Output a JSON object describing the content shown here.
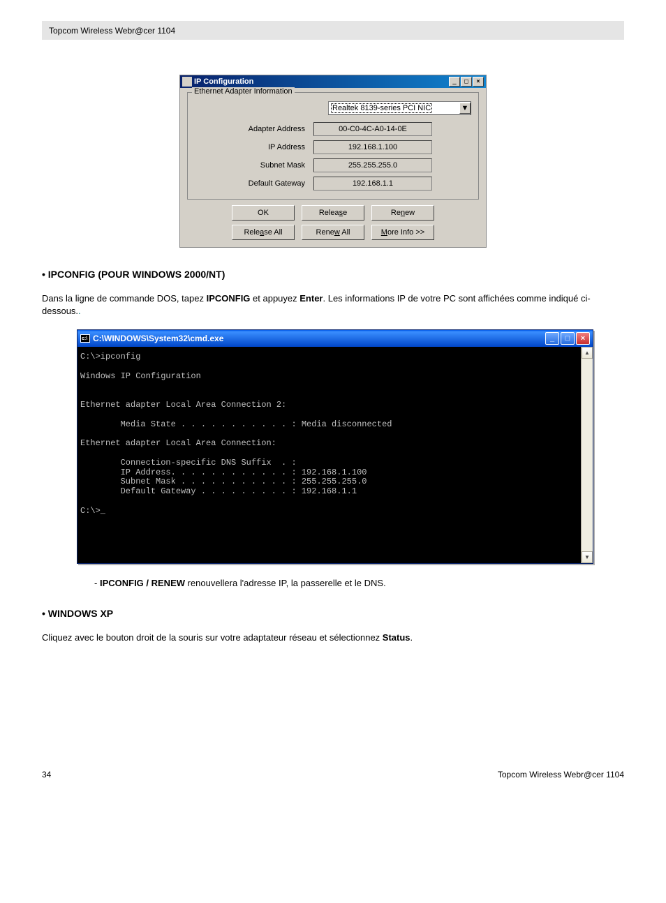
{
  "header": {
    "text": "Topcom Wireless Webr@cer 1104"
  },
  "ipconfigWindow": {
    "title": "IP Configuration",
    "legend": "Ethernet Adapter Information",
    "adapter": "Realtek 8139-series PCI NIC",
    "rows": {
      "adapterAddr": {
        "label": "Adapter Address",
        "value": "00-C0-4C-A0-14-0E"
      },
      "ipAddr": {
        "label": "IP Address",
        "value": "192.168.1.100"
      },
      "subnet": {
        "label": "Subnet Mask",
        "value": "255.255.255.0"
      },
      "gateway": {
        "label": "Default Gateway",
        "value": "192.168.1.1"
      }
    },
    "buttons": {
      "ok": "OK",
      "release": "Release",
      "renew": "Renew",
      "releaseAll": "Release All",
      "renewAll": "Renew All",
      "moreInfo": "More Info >>"
    }
  },
  "section1": {
    "heading": "• IPCONFIG (POUR WINDOWS 2000/NT)",
    "para_a": "Dans la ligne de commande DOS, tapez ",
    "para_b": "IPCONFIG",
    "para_c": " et appuyez ",
    "para_d": "Enter",
    "para_e": ".  Les informations IP de votre PC sont affichées comme indiqué ci-dessous.",
    "para_dot": "."
  },
  "cmd": {
    "title": "C:\\WINDOWS\\System32\\cmd.exe",
    "output": "C:\\>ipconfig\n\nWindows IP Configuration\n\n\nEthernet adapter Local Area Connection 2:\n\n        Media State . . . . . . . . . . . : Media disconnected\n\nEthernet adapter Local Area Connection:\n\n        Connection-specific DNS Suffix  . :\n        IP Address. . . . . . . . . . . . : 192.168.1.100\n        Subnet Mask . . . . . . . . . . . : 255.255.255.0\n        Default Gateway . . . . . . . . . : 192.168.1.1\n\nC:\\>_"
  },
  "note": {
    "prefix": "- ",
    "bold": "IPCONFIG / RENEW",
    "rest": " renouvellera l'adresse IP, la passerelle et le DNS."
  },
  "section2": {
    "heading": "• WINDOWS XP",
    "para_a": "Cliquez avec le bouton droit de la souris sur votre adaptateur réseau et sélectionnez ",
    "para_b": "Status",
    "para_c": "."
  },
  "footer": {
    "page": "34",
    "brand": "Topcom Wireless Webr@cer 1104"
  }
}
